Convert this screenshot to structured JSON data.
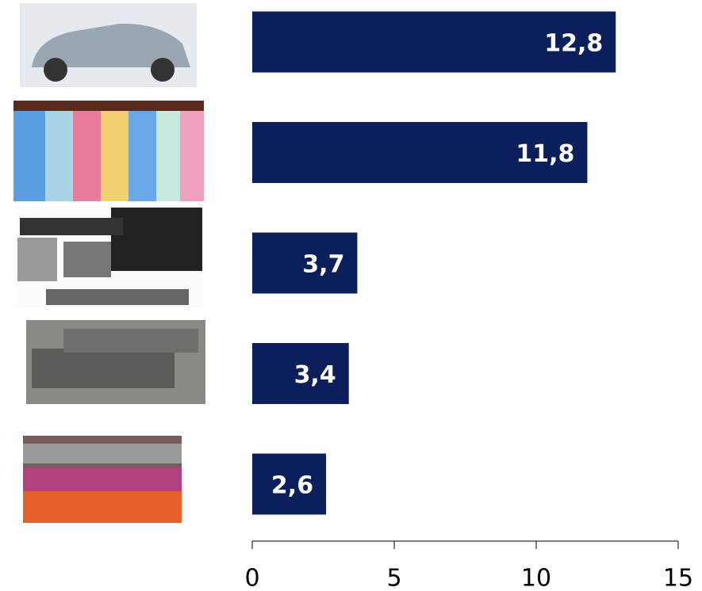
{
  "chart_data": {
    "type": "hbar",
    "categories": [
      null,
      null,
      null,
      null,
      null
    ],
    "values": [
      12.8,
      11.8,
      3.7,
      3.4,
      2.6
    ],
    "value_labels": [
      "12,8",
      "11,8",
      "3,7",
      "3,4",
      "2,6"
    ],
    "color": "#0b1f5c",
    "xlim": [
      0,
      15
    ],
    "xticks": [
      0,
      5,
      10,
      15
    ]
  }
}
